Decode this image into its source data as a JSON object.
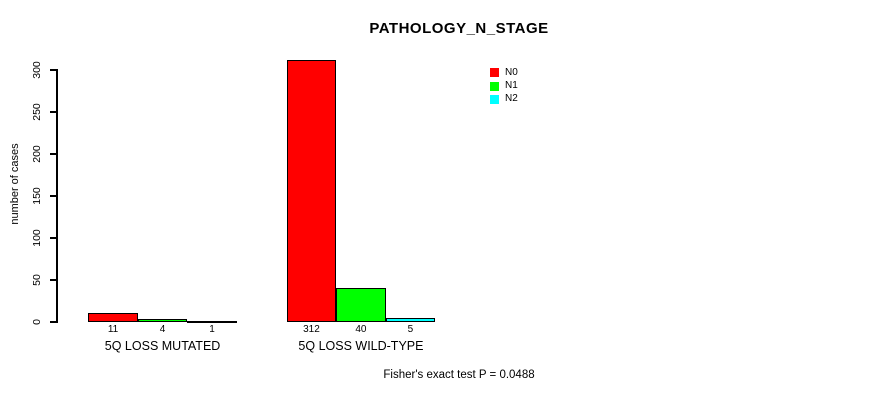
{
  "chart_data": {
    "type": "bar",
    "title": "PATHOLOGY_N_STAGE",
    "ylabel": "number of cases",
    "xlabel": "",
    "categories": [
      "5Q LOSS MUTATED",
      "5Q LOSS WILD-TYPE"
    ],
    "series": [
      {
        "name": "N0",
        "color": "#ff0000",
        "values": [
          11,
          312
        ]
      },
      {
        "name": "N1",
        "color": "#00ff00",
        "values": [
          4,
          40
        ]
      },
      {
        "name": "N2",
        "color": "#00ffff",
        "values": [
          1,
          5
        ]
      }
    ],
    "bar_value_labels": [
      [
        "11",
        "4",
        "1"
      ],
      [
        "312",
        "40",
        "5"
      ]
    ],
    "yticks": [
      0,
      50,
      100,
      150,
      200,
      250,
      300
    ],
    "ylim": [
      0,
      300
    ],
    "grid": false,
    "legend": {
      "position": "top-right",
      "entries": [
        {
          "label": "N0",
          "color": "#ff0000"
        },
        {
          "label": "N1",
          "color": "#00ff00"
        },
        {
          "label": "N2",
          "color": "#00ffff"
        }
      ]
    },
    "annotation": "Fisher's exact test P = 0.0488",
    "axis_color": "#000000",
    "bar_border_color": "#000000"
  },
  "footer": {
    "text": "Fisher's exact test P = 0.0488"
  }
}
